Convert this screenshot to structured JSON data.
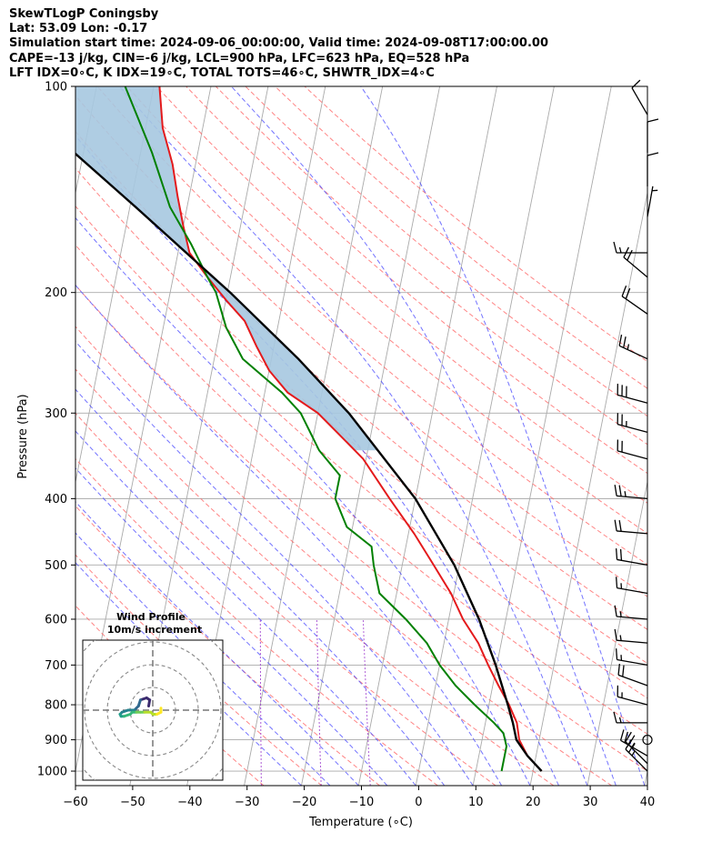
{
  "header": {
    "line1": "SkewTLogP Coningsby",
    "line2": "Lat: 53.09   Lon: -0.17",
    "line3": "Simulation start time: 2024-09-06_00:00:00, Valid time: 2024-09-08T17:00:00.00",
    "line4": "CAPE=-13 j/kg, CIN=-6 j/kg, LCL=900 hPa, LFC=623 hPa, EQ=528 hPa",
    "line5": "LFT IDX=0∘C, K IDX=19∘C, TOTAL TOTS=46∘C, SHWTR_IDX=4∘C"
  },
  "colors": {
    "temperature": "#e41a1c",
    "dewpoint": "#008000",
    "parcel": "#000000",
    "cape_fill": "#a6c8e0",
    "dry_adiabat": "#ff6666",
    "moist_adiabat": "#4444ff",
    "mixing_ratio": "#9933cc",
    "isotherm": "#aaaaaa"
  },
  "chart_data": {
    "type": "skew-t log-p",
    "xlabel": "Temperature (∘C)",
    "ylabel": "Pressure (hPa)",
    "xlim": [
      -60,
      40
    ],
    "ylim": [
      1050,
      100
    ],
    "x_ticks": [
      "−60",
      "−50",
      "−40",
      "−30",
      "−20",
      "−10",
      "0",
      "10",
      "20",
      "30",
      "40"
    ],
    "y_ticks": [
      "100",
      "200",
      "300",
      "400",
      "500",
      "600",
      "700",
      "800",
      "900",
      "1000"
    ],
    "temperature_profile": [
      [
        1000,
        21.5
      ],
      [
        950,
        18.5
      ],
      [
        900,
        16.5
      ],
      [
        850,
        15.5
      ],
      [
        800,
        13.5
      ],
      [
        750,
        11
      ],
      [
        700,
        8.5
      ],
      [
        650,
        6
      ],
      [
        600,
        2.5
      ],
      [
        550,
        -0.5
      ],
      [
        500,
        -4.5
      ],
      [
        450,
        -9
      ],
      [
        400,
        -14.5
      ],
      [
        350,
        -20.5
      ],
      [
        320,
        -26
      ],
      [
        300,
        -30
      ],
      [
        280,
        -36
      ],
      [
        260,
        -40
      ],
      [
        240,
        -43
      ],
      [
        220,
        -46
      ],
      [
        205,
        -50
      ],
      [
        190,
        -54
      ],
      [
        175,
        -58
      ],
      [
        160,
        -60
      ],
      [
        145,
        -62
      ],
      [
        130,
        -64
      ],
      [
        115,
        -67
      ],
      [
        100,
        -69
      ]
    ],
    "dewpoint_profile": [
      [
        1000,
        14.5
      ],
      [
        950,
        14.5
      ],
      [
        920,
        14.5
      ],
      [
        880,
        13.5
      ],
      [
        850,
        11.5
      ],
      [
        800,
        7.5
      ],
      [
        750,
        3.5
      ],
      [
        700,
        0
      ],
      [
        650,
        -3
      ],
      [
        600,
        -7.5
      ],
      [
        550,
        -13
      ],
      [
        500,
        -15
      ],
      [
        470,
        -16
      ],
      [
        440,
        -21
      ],
      [
        400,
        -24
      ],
      [
        370,
        -24
      ],
      [
        340,
        -28.5
      ],
      [
        300,
        -33
      ],
      [
        280,
        -37
      ],
      [
        250,
        -45
      ],
      [
        225,
        -49
      ],
      [
        200,
        -52
      ],
      [
        190,
        -54
      ],
      [
        170,
        -58
      ],
      [
        150,
        -63
      ],
      [
        125,
        -68
      ],
      [
        110,
        -72
      ],
      [
        100,
        -75
      ]
    ],
    "parcel_profile": [
      [
        1000,
        21.5
      ],
      [
        950,
        18.5
      ],
      [
        900,
        16
      ],
      [
        850,
        14.8
      ],
      [
        800,
        13.3
      ],
      [
        700,
        9.8
      ],
      [
        600,
        5.3
      ],
      [
        500,
        -0.9
      ],
      [
        400,
        -10
      ],
      [
        300,
        -24.6
      ],
      [
        250,
        -35.3
      ],
      [
        200,
        -49.5
      ],
      [
        150,
        -69
      ],
      [
        100,
        -97
      ]
    ],
    "wind_barbs": [
      {
        "p": 1000,
        "speed_kt": 25,
        "dir_deg": 315
      },
      {
        "p": 975,
        "speed_kt": 25,
        "dir_deg": 315
      },
      {
        "p": 950,
        "speed_kt": 20,
        "dir_deg": 300
      },
      {
        "p": 900,
        "speed_kt": 0,
        "dir_deg": 0,
        "calm": true
      },
      {
        "p": 850,
        "speed_kt": 15,
        "dir_deg": 270
      },
      {
        "p": 800,
        "speed_kt": 15,
        "dir_deg": 285
      },
      {
        "p": 750,
        "speed_kt": 20,
        "dir_deg": 290
      },
      {
        "p": 700,
        "speed_kt": 15,
        "dir_deg": 280
      },
      {
        "p": 650,
        "speed_kt": 15,
        "dir_deg": 275
      },
      {
        "p": 600,
        "speed_kt": 15,
        "dir_deg": 275
      },
      {
        "p": 550,
        "speed_kt": 15,
        "dir_deg": 280
      },
      {
        "p": 500,
        "speed_kt": 20,
        "dir_deg": 280
      },
      {
        "p": 450,
        "speed_kt": 20,
        "dir_deg": 275
      },
      {
        "p": 400,
        "speed_kt": 25,
        "dir_deg": 275
      },
      {
        "p": 350,
        "speed_kt": 20,
        "dir_deg": 285
      },
      {
        "p": 320,
        "speed_kt": 25,
        "dir_deg": 285
      },
      {
        "p": 290,
        "speed_kt": 30,
        "dir_deg": 285
      },
      {
        "p": 250,
        "speed_kt": 25,
        "dir_deg": 295
      },
      {
        "p": 215,
        "speed_kt": 20,
        "dir_deg": 305
      },
      {
        "p": 190,
        "speed_kt": 20,
        "dir_deg": 310
      },
      {
        "p": 175,
        "speed_kt": 15,
        "dir_deg": 270
      },
      {
        "p": 155,
        "speed_kt": 5,
        "dir_deg": 10
      },
      {
        "p": 140,
        "speed_kt": 10,
        "dir_deg": 0
      },
      {
        "p": 125,
        "speed_kt": 10,
        "dir_deg": 0
      },
      {
        "p": 110,
        "speed_kt": 10,
        "dir_deg": 330
      }
    ],
    "inset": {
      "title_line1": "Wind Profile",
      "title_line2": "10m/s increment",
      "hodograph": [
        [
          6,
          2
        ],
        [
          6.5,
          5
        ],
        [
          5,
          6
        ],
        [
          2,
          5
        ],
        [
          1,
          2
        ],
        [
          -1,
          0
        ],
        [
          -4,
          0
        ],
        [
          -7,
          -1
        ],
        [
          -8,
          -2
        ],
        [
          -7.5,
          -3
        ],
        [
          -6,
          -3
        ],
        [
          -3,
          -2
        ],
        [
          -2,
          -1
        ],
        [
          0,
          -1
        ],
        [
          2,
          -1
        ],
        [
          4,
          -1
        ],
        [
          7,
          -1
        ],
        [
          8,
          -2
        ],
        [
          10,
          -2
        ],
        [
          12,
          -1
        ],
        [
          12,
          1
        ]
      ]
    }
  }
}
